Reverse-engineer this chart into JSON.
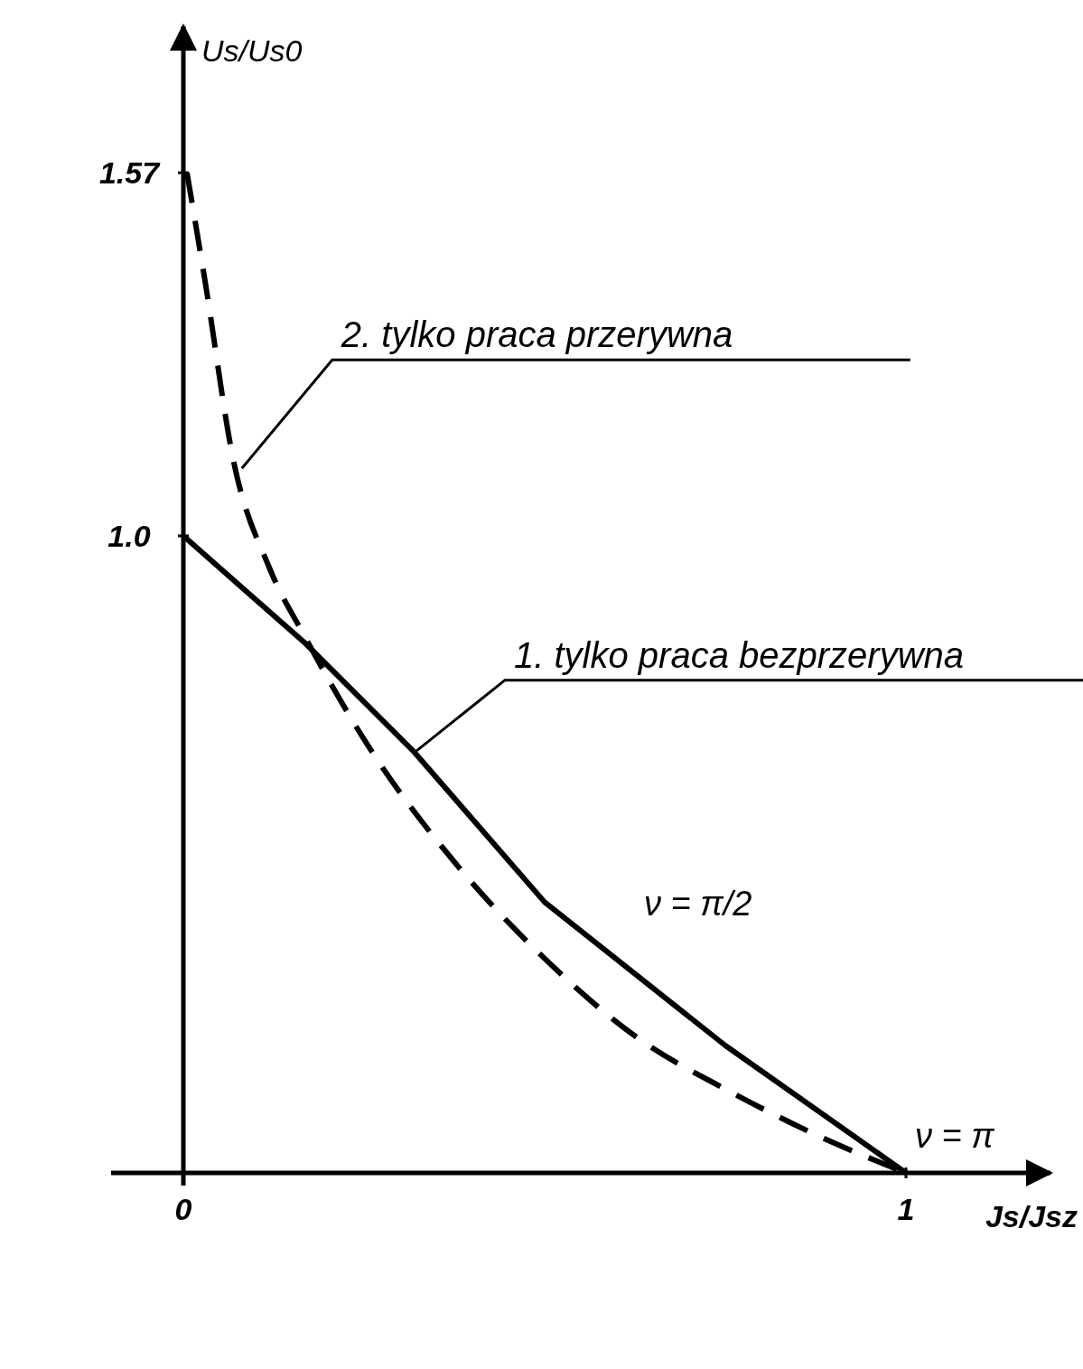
{
  "chart_data": {
    "type": "line",
    "xlabel": "Js/Jsz",
    "ylabel": "Us/Us0",
    "xlim": [
      0,
      1.2
    ],
    "ylim": [
      0,
      1.8
    ],
    "xticks": [
      0,
      1
    ],
    "yticks": [
      {
        "value": 1,
        "label": "1.0"
      },
      1.57
    ],
    "grid": false,
    "series": [
      {
        "color": "#000000",
        "line_style": "solid",
        "x": [
          0,
          0.17,
          0.32,
          0.5,
          0.75,
          1
        ],
        "values": [
          1,
          0.83,
          0.66,
          0.425,
          0.2,
          0
        ]
      },
      {
        "color": "#000000",
        "line_style": "dashed",
        "x": [
          0.005,
          0.03,
          0.069,
          0.119,
          0.169,
          0.256,
          0.381,
          0.506,
          0.631,
          0.756,
          0.881,
          1
        ],
        "values": [
          1.57,
          1.4,
          1.12,
          0.95,
          0.84,
          0.67,
          0.48,
          0.33,
          0.21,
          0.128,
          0.057,
          0
        ]
      }
    ],
    "annotations": [
      {
        "text": "2. tylko praca przerywna",
        "x": 0.081,
        "y": 1.106
      },
      {
        "text": "1. tylko praca bezprzerywna",
        "x": 0.32,
        "y": 0.66
      },
      "ν = π/2",
      {
        "text": "ν = π",
        "x": 1,
        "y": 0
      }
    ]
  }
}
